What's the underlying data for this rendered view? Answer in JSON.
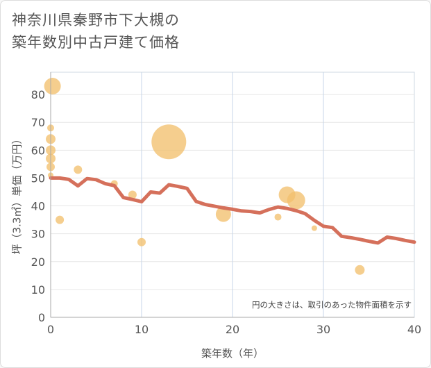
{
  "title_line1": "神奈川県秦野市下大槻の",
  "title_line2": "築年数別中古戸建て価格",
  "chart_data": {
    "type": "scatter+line",
    "xlabel": "築年数（年）",
    "ylabel": "坪（3.3㎡）単価（万円）",
    "xlim": [
      0,
      40
    ],
    "ylim": [
      0,
      88
    ],
    "xticks": [
      "0",
      "10",
      "20",
      "30",
      "40"
    ],
    "yticks": [
      "0",
      "10",
      "20",
      "30",
      "40",
      "50",
      "60",
      "70",
      "80"
    ],
    "note": "円の大きさは、取引のあった物件面積を示す",
    "bubble_color": "#f2c06e",
    "line_color": "#d5705b",
    "bubbles": [
      {
        "x": 0.2,
        "y": 83,
        "size": 12
      },
      {
        "x": 0,
        "y": 68,
        "size": 5
      },
      {
        "x": 0,
        "y": 64,
        "size": 7
      },
      {
        "x": 0,
        "y": 60,
        "size": 7
      },
      {
        "x": 0,
        "y": 57,
        "size": 7
      },
      {
        "x": 0,
        "y": 54,
        "size": 6
      },
      {
        "x": 0,
        "y": 51,
        "size": 4
      },
      {
        "x": 1,
        "y": 35,
        "size": 6
      },
      {
        "x": 3,
        "y": 53,
        "size": 6
      },
      {
        "x": 7,
        "y": 48,
        "size": 5
      },
      {
        "x": 9,
        "y": 44,
        "size": 6
      },
      {
        "x": 10,
        "y": 27,
        "size": 6
      },
      {
        "x": 13,
        "y": 63,
        "size": 25
      },
      {
        "x": 19,
        "y": 37,
        "size": 11
      },
      {
        "x": 25,
        "y": 36,
        "size": 5
      },
      {
        "x": 26,
        "y": 44,
        "size": 12
      },
      {
        "x": 27,
        "y": 42,
        "size": 13
      },
      {
        "x": 29,
        "y": 32,
        "size": 4
      },
      {
        "x": 34,
        "y": 17,
        "size": 7
      }
    ],
    "trend": [
      {
        "x": 0,
        "y": 50
      },
      {
        "x": 1,
        "y": 50
      },
      {
        "x": 2,
        "y": 49.5
      },
      {
        "x": 3,
        "y": 47.2
      },
      {
        "x": 4,
        "y": 49.8
      },
      {
        "x": 5,
        "y": 49.4
      },
      {
        "x": 6,
        "y": 48
      },
      {
        "x": 7,
        "y": 47.3
      },
      {
        "x": 8,
        "y": 43
      },
      {
        "x": 9,
        "y": 42.3
      },
      {
        "x": 10,
        "y": 41.5
      },
      {
        "x": 11,
        "y": 45
      },
      {
        "x": 12,
        "y": 44.6
      },
      {
        "x": 13,
        "y": 47.6
      },
      {
        "x": 14,
        "y": 47
      },
      {
        "x": 15,
        "y": 46.3
      },
      {
        "x": 16,
        "y": 41.6
      },
      {
        "x": 17,
        "y": 40.5
      },
      {
        "x": 18,
        "y": 39.9
      },
      {
        "x": 19,
        "y": 39.3
      },
      {
        "x": 20,
        "y": 38.8
      },
      {
        "x": 21,
        "y": 38.2
      },
      {
        "x": 22,
        "y": 38
      },
      {
        "x": 23,
        "y": 37.5
      },
      {
        "x": 24,
        "y": 38.7
      },
      {
        "x": 25,
        "y": 39.6
      },
      {
        "x": 26,
        "y": 39.1
      },
      {
        "x": 27,
        "y": 38.3
      },
      {
        "x": 28,
        "y": 37.2
      },
      {
        "x": 29,
        "y": 34.8
      },
      {
        "x": 30,
        "y": 32.7
      },
      {
        "x": 31,
        "y": 32.2
      },
      {
        "x": 32,
        "y": 29.1
      },
      {
        "x": 33,
        "y": 28.6
      },
      {
        "x": 34,
        "y": 28
      },
      {
        "x": 35,
        "y": 27.3
      },
      {
        "x": 36,
        "y": 26.7
      },
      {
        "x": 37,
        "y": 28.8
      },
      {
        "x": 38,
        "y": 28.3
      },
      {
        "x": 39,
        "y": 27.6
      },
      {
        "x": 40,
        "y": 27
      }
    ]
  }
}
